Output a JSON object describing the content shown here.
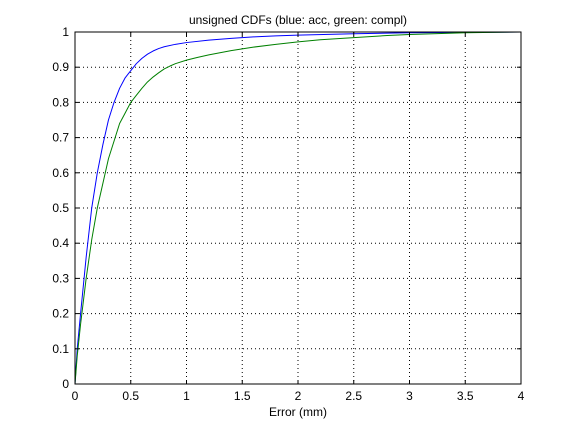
{
  "chart_data": {
    "type": "line",
    "title": "unsigned CDFs (blue: acc, green: compl)",
    "xlabel": "Error (mm)",
    "ylabel": "",
    "xlim": [
      0,
      4
    ],
    "ylim": [
      0,
      1
    ],
    "xticks": [
      0,
      0.5,
      1,
      1.5,
      2,
      2.5,
      3,
      3.5,
      4
    ],
    "xtick_labels": [
      "0",
      "0.5",
      "1",
      "1.5",
      "2",
      "2.5",
      "3",
      "3.5",
      "4"
    ],
    "yticks": [
      0,
      0.1,
      0.2,
      0.3,
      0.4,
      0.5,
      0.6,
      0.7,
      0.8,
      0.9,
      1
    ],
    "ytick_labels": [
      "0",
      "0.1",
      "0.2",
      "0.3",
      "0.4",
      "0.5",
      "0.6",
      "0.7",
      "0.8",
      "0.9",
      "1"
    ],
    "grid": true,
    "grid_style": "dotted",
    "legend": "none",
    "series": [
      {
        "color": "#0000ff",
        "x": [
          0,
          0.02,
          0.05,
          0.1,
          0.15,
          0.2,
          0.25,
          0.3,
          0.35,
          0.4,
          0.45,
          0.5,
          0.55,
          0.6,
          0.65,
          0.7,
          0.75,
          0.8,
          0.9,
          1.0,
          1.2,
          1.4,
          1.6,
          1.8,
          2.0,
          2.5,
          3.0,
          3.5,
          4.0
        ],
        "y": [
          0.0,
          0.1,
          0.2,
          0.36,
          0.5,
          0.6,
          0.68,
          0.75,
          0.8,
          0.84,
          0.87,
          0.89,
          0.91,
          0.925,
          0.937,
          0.946,
          0.953,
          0.958,
          0.965,
          0.97,
          0.977,
          0.982,
          0.986,
          0.989,
          0.991,
          0.995,
          0.998,
          0.999,
          1.0
        ]
      },
      {
        "color": "#008000",
        "x": [
          0,
          0.02,
          0.05,
          0.1,
          0.15,
          0.2,
          0.25,
          0.3,
          0.35,
          0.4,
          0.45,
          0.5,
          0.55,
          0.6,
          0.65,
          0.7,
          0.75,
          0.8,
          0.85,
          0.9,
          1.0,
          1.1,
          1.2,
          1.4,
          1.6,
          1.8,
          2.0,
          2.2,
          2.5,
          2.8,
          3.0,
          3.5,
          4.0
        ],
        "y": [
          0.0,
          0.08,
          0.17,
          0.3,
          0.41,
          0.5,
          0.57,
          0.64,
          0.69,
          0.74,
          0.77,
          0.8,
          0.82,
          0.84,
          0.858,
          0.872,
          0.884,
          0.895,
          0.903,
          0.91,
          0.92,
          0.928,
          0.935,
          0.947,
          0.957,
          0.965,
          0.972,
          0.978,
          0.984,
          0.99,
          0.993,
          0.998,
          1.0
        ]
      }
    ]
  }
}
